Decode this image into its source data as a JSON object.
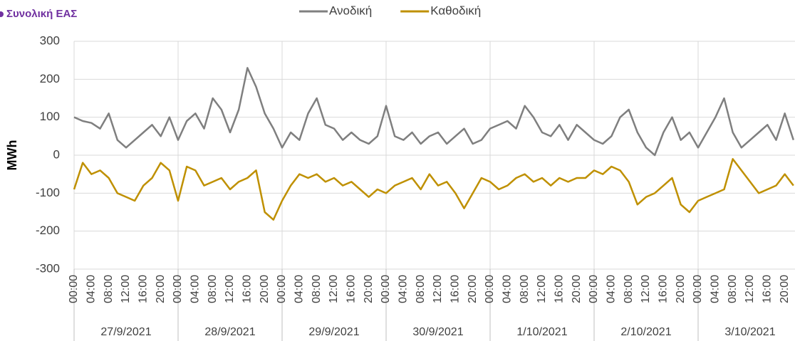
{
  "chart_data": {
    "type": "line",
    "title": "Συνολική ΕΑΣ",
    "y_label": "MWh",
    "categories": [
      "00:00",
      null,
      "04:00",
      null,
      "08:00",
      null,
      "12:00",
      null,
      "16:00",
      null,
      "20:00",
      null,
      "00:00",
      null,
      "04:00",
      null,
      "08:00",
      null,
      "12:00",
      null,
      "16:00",
      null,
      "20:00",
      null,
      "00:00",
      null,
      "04:00",
      null,
      "08:00",
      null,
      "12:00",
      null,
      "16:00",
      null,
      "20:00",
      null,
      "00:00",
      null,
      "04:00",
      null,
      "08:00",
      null,
      "12:00",
      null,
      "16:00",
      null,
      "20:00",
      null,
      "00:00",
      null,
      "04:00",
      null,
      "08:00",
      null,
      "12:00",
      null,
      "16:00",
      null,
      "20:00",
      null,
      "00:00",
      null,
      "04:00",
      null,
      "08:00",
      null,
      "12:00",
      null,
      "16:00",
      null,
      "20:00",
      null,
      "00:00",
      null,
      "04:00",
      null,
      "08:00",
      null,
      "12:00",
      null,
      "16:00",
      null,
      "20:00",
      null
    ],
    "groups": [
      "27/9/2021",
      "28/9/2021",
      "29/9/2021",
      "30/9/2021",
      "1/10/2021",
      "2/10/2021",
      "3/10/2021"
    ],
    "series": [
      {
        "name": "Ανοδική",
        "color": "#7f7f7f",
        "values": [
          100,
          90,
          85,
          70,
          110,
          40,
          20,
          40,
          60,
          80,
          50,
          100,
          40,
          90,
          110,
          70,
          150,
          120,
          60,
          120,
          230,
          180,
          110,
          70,
          20,
          60,
          40,
          110,
          150,
          80,
          70,
          40,
          60,
          40,
          30,
          50,
          130,
          50,
          40,
          60,
          30,
          50,
          60,
          30,
          50,
          70,
          30,
          40,
          70,
          80,
          90,
          70,
          130,
          100,
          60,
          50,
          80,
          40,
          80,
          60,
          40,
          30,
          50,
          100,
          120,
          60,
          20,
          0,
          60,
          100,
          40,
          60,
          20,
          60,
          100,
          150,
          60,
          20,
          40,
          60,
          80,
          40,
          110,
          40
        ]
      },
      {
        "name": "Καθοδική",
        "color": "#bf9000",
        "values": [
          -90,
          -20,
          -50,
          -40,
          -60,
          -100,
          -110,
          -120,
          -80,
          -60,
          -20,
          -40,
          -120,
          -30,
          -40,
          -80,
          -70,
          -60,
          -90,
          -70,
          -60,
          -40,
          -150,
          -170,
          -120,
          -80,
          -50,
          -60,
          -50,
          -70,
          -60,
          -80,
          -70,
          -90,
          -110,
          -90,
          -100,
          -80,
          -70,
          -60,
          -90,
          -50,
          -80,
          -70,
          -100,
          -140,
          -100,
          -60,
          -70,
          -90,
          -80,
          -60,
          -50,
          -70,
          -60,
          -80,
          -60,
          -70,
          -60,
          -60,
          -40,
          -50,
          -30,
          -40,
          -70,
          -130,
          -110,
          -100,
          -80,
          -60,
          -130,
          -150,
          -120,
          -110,
          -100,
          -90,
          -10,
          -40,
          -70,
          -100,
          -90,
          -80,
          -50,
          -80
        ]
      }
    ],
    "ylim": [
      -300,
      300
    ],
    "yticks": [
      -300,
      -200,
      -100,
      0,
      100,
      200,
      300
    ],
    "grid": true,
    "legend": "top"
  }
}
